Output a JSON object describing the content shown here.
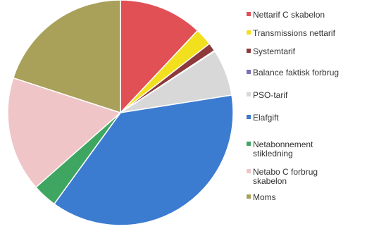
{
  "chart_data": {
    "type": "pie",
    "title": "",
    "legend_position": "right",
    "start_angle_deg": 0,
    "direction": "clockwise",
    "slices": [
      {
        "label": "Nettarif C skabelon",
        "value": 12.0,
        "color": "#e05055"
      },
      {
        "label": "Transmissions nettarif",
        "value": 2.5,
        "color": "#f2e01f"
      },
      {
        "label": "Systemtarif",
        "value": 1.2,
        "color": "#8e3a3c"
      },
      {
        "label": "Balance faktisk forbrug",
        "value": 0.1,
        "color": "#7a70b6"
      },
      {
        "label": "PSO-tarif",
        "value": 6.7,
        "color": "#d8d8d8"
      },
      {
        "label": "Elafgift",
        "value": 37.5,
        "color": "#3b7bd0"
      },
      {
        "label": "Netabonnement stikledning",
        "value": 3.5,
        "color": "#3ea660"
      },
      {
        "label": "Netabo C forbrug skabelon",
        "value": 16.5,
        "color": "#efc5c7"
      },
      {
        "label": "Moms",
        "value": 20.0,
        "color": "#a9a05a"
      }
    ]
  }
}
